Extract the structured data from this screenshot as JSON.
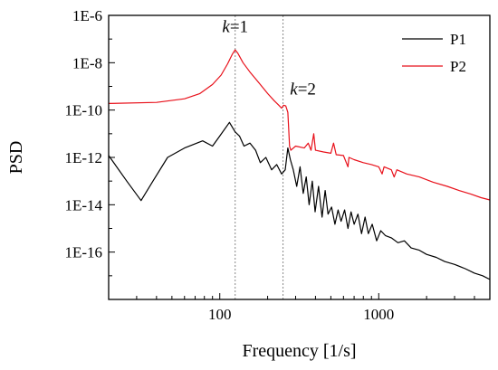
{
  "chart_data": {
    "type": "line",
    "title": "",
    "xlabel": "Frequency [1/s]",
    "ylabel": "PSD",
    "x_scale": "log",
    "y_scale": "log",
    "xlim": [
      20,
      5000
    ],
    "ylim": [
      1e-18,
      1e-06
    ],
    "x_ticks": [
      {
        "value": 100,
        "label": "100"
      },
      {
        "value": 1000,
        "label": "1000"
      }
    ],
    "y_ticks": [
      {
        "value": 1e-06,
        "label": "1E-6"
      },
      {
        "value": 1e-08,
        "label": "1E-8"
      },
      {
        "value": 1e-10,
        "label": "1E-10"
      },
      {
        "value": 1e-12,
        "label": "1E-12"
      },
      {
        "value": 1e-14,
        "label": "1E-14"
      },
      {
        "value": 1e-16,
        "label": "1E-16"
      }
    ],
    "legend_position": "top-right",
    "grid": false,
    "vlines": [
      {
        "x": 125,
        "style": "dotted",
        "color": "#888888"
      },
      {
        "x": 250,
        "style": "dotted",
        "color": "#888888"
      }
    ],
    "annotations": [
      {
        "italic": "k",
        "rest": "=1",
        "x": 125,
        "y": 2e-07
      },
      {
        "italic": "k",
        "rest": "=2",
        "x": 250,
        "y": 4.5e-10
      }
    ],
    "series": [
      {
        "name": "P1",
        "color": "#000000",
        "points": [
          [
            20,
            1.2e-12
          ],
          [
            26,
            1e-13
          ],
          [
            32,
            1.5e-14
          ],
          [
            38,
            1e-13
          ],
          [
            47,
            1e-12
          ],
          [
            60,
            2.5e-12
          ],
          [
            78,
            5e-12
          ],
          [
            90,
            3e-12
          ],
          [
            100,
            8e-12
          ],
          [
            115,
            3e-11
          ],
          [
            125,
            1.2e-11
          ],
          [
            133,
            8e-12
          ],
          [
            142,
            3e-12
          ],
          [
            155,
            4e-12
          ],
          [
            168,
            2e-12
          ],
          [
            180,
            6e-13
          ],
          [
            195,
            1e-12
          ],
          [
            212,
            3e-13
          ],
          [
            228,
            5e-13
          ],
          [
            245,
            2e-13
          ],
          [
            258,
            3e-13
          ],
          [
            268,
            2.5e-12
          ],
          [
            278,
            8e-13
          ],
          [
            290,
            3e-13
          ],
          [
            305,
            6e-14
          ],
          [
            320,
            4e-13
          ],
          [
            335,
            3e-14
          ],
          [
            350,
            1.5e-13
          ],
          [
            365,
            1e-14
          ],
          [
            382,
            1e-13
          ],
          [
            398,
            5e-15
          ],
          [
            418,
            6e-14
          ],
          [
            440,
            3e-15
          ],
          [
            460,
            4e-14
          ],
          [
            480,
            4e-15
          ],
          [
            505,
            8e-15
          ],
          [
            530,
            1.5e-15
          ],
          [
            555,
            6e-15
          ],
          [
            580,
            2e-15
          ],
          [
            610,
            6e-15
          ],
          [
            640,
            1e-15
          ],
          [
            670,
            5e-15
          ],
          [
            700,
            1.5e-15
          ],
          [
            740,
            4e-15
          ],
          [
            780,
            6e-16
          ],
          [
            820,
            3e-15
          ],
          [
            860,
            6e-16
          ],
          [
            910,
            1.5e-15
          ],
          [
            970,
            3e-16
          ],
          [
            1030,
            8e-16
          ],
          [
            1100,
            5e-16
          ],
          [
            1200,
            4e-16
          ],
          [
            1320,
            2.5e-16
          ],
          [
            1450,
            3e-16
          ],
          [
            1600,
            1.5e-16
          ],
          [
            1800,
            1.2e-16
          ],
          [
            2000,
            8e-17
          ],
          [
            2300,
            6e-17
          ],
          [
            2600,
            4e-17
          ],
          [
            3000,
            3e-17
          ],
          [
            3500,
            2e-17
          ],
          [
            4000,
            1.3e-17
          ],
          [
            4500,
            1e-17
          ],
          [
            5000,
            7e-18
          ]
        ]
      },
      {
        "name": "P2",
        "color": "#e8101a",
        "points": [
          [
            20,
            1.9e-10
          ],
          [
            40,
            2.1e-10
          ],
          [
            60,
            3e-10
          ],
          [
            75,
            5e-10
          ],
          [
            90,
            1.2e-09
          ],
          [
            102,
            3e-09
          ],
          [
            112,
            9e-09
          ],
          [
            120,
            2.3e-08
          ],
          [
            125,
            3.5e-08
          ],
          [
            130,
            2.5e-08
          ],
          [
            140,
            1e-08
          ],
          [
            155,
            4e-09
          ],
          [
            175,
            1.5e-09
          ],
          [
            200,
            5e-10
          ],
          [
            220,
            2.5e-10
          ],
          [
            235,
            1.6e-10
          ],
          [
            245,
            1.2e-10
          ],
          [
            252,
            1.6e-10
          ],
          [
            260,
            1.5e-10
          ],
          [
            268,
            8e-11
          ],
          [
            275,
            3e-12
          ],
          [
            280,
            2e-12
          ],
          [
            300,
            3e-12
          ],
          [
            340,
            2.5e-12
          ],
          [
            360,
            4e-12
          ],
          [
            375,
            2e-12
          ],
          [
            390,
            1e-11
          ],
          [
            400,
            2e-12
          ],
          [
            450,
            1.7e-12
          ],
          [
            500,
            1.5e-12
          ],
          [
            520,
            4e-12
          ],
          [
            540,
            1.3e-12
          ],
          [
            600,
            1.2e-12
          ],
          [
            640,
            4e-13
          ],
          [
            650,
            1e-12
          ],
          [
            700,
            8e-13
          ],
          [
            800,
            6e-13
          ],
          [
            900,
            5e-13
          ],
          [
            1000,
            4e-13
          ],
          [
            1050,
            2e-13
          ],
          [
            1080,
            4e-13
          ],
          [
            1200,
            3e-13
          ],
          [
            1250,
            1.5e-13
          ],
          [
            1300,
            3e-13
          ],
          [
            1500,
            2e-13
          ],
          [
            1800,
            1.5e-13
          ],
          [
            2200,
            9e-14
          ],
          [
            2700,
            6e-14
          ],
          [
            3200,
            4e-14
          ],
          [
            3800,
            2.8e-14
          ],
          [
            4400,
            2e-14
          ],
          [
            5000,
            1.6e-14
          ]
        ]
      }
    ]
  }
}
